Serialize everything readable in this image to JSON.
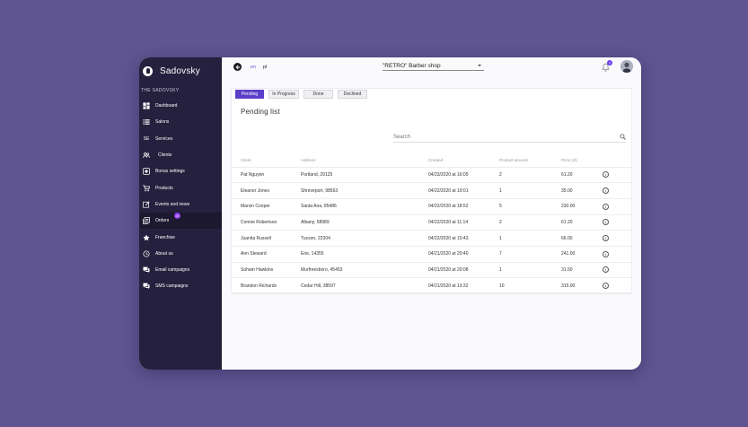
{
  "brand": {
    "name": "Sadovsky"
  },
  "sidebar": {
    "section_label": "THE SADOVSKY",
    "items": [
      {
        "label": "Dashboard",
        "icon": "dashboard-icon"
      },
      {
        "label": "Salons",
        "icon": "list-icon"
      },
      {
        "label": "Services",
        "icon": "services-icon",
        "icon_text": "SE"
      },
      {
        "label": "Clients",
        "icon": "clients-icon"
      },
      {
        "label": "Bonus settings",
        "icon": "bonus-icon"
      },
      {
        "label": "Products",
        "icon": "cart-icon"
      },
      {
        "label": "Events and news",
        "icon": "edit-icon"
      },
      {
        "label": "Orders",
        "icon": "orders-icon",
        "badge": "25"
      },
      {
        "label": "Franchise",
        "icon": "star-icon"
      },
      {
        "label": "About us",
        "icon": "history-icon"
      },
      {
        "label": "Email campaigns",
        "icon": "chat-icon"
      },
      {
        "label": "SMS campaigns",
        "icon": "chat-icon"
      }
    ]
  },
  "topbar": {
    "lang_en": "en",
    "lang_pl": "pl",
    "shop": "\"RETRO\" Barber shop",
    "notifications": "4"
  },
  "tabs": [
    "Pending",
    "In Progress",
    "Done",
    "Declined"
  ],
  "list_title": "Pending list",
  "search": {
    "placeholder": "Search"
  },
  "table": {
    "headers": [
      "Client",
      "Address",
      "Created",
      "Product amount",
      "Price (zł)"
    ],
    "rows": [
      [
        "Pat Nguyen",
        "Portland, 29125",
        "04/23/2020 at 16:05",
        "2",
        "61.20"
      ],
      [
        "Eleanor Jones",
        "Shreveport, 98563",
        "04/22/2020 at 19:01",
        "1",
        "35.00"
      ],
      [
        "Marvin Cooper",
        "Santa Ana, 85486",
        "04/22/2020 at 18:52",
        "5",
        "230.00"
      ],
      [
        "Connie Robertson",
        "Albany, 58989",
        "04/22/2020 at 11:14",
        "2",
        "61.20"
      ],
      [
        "Juanita Russell",
        "Tucson, 22304",
        "04/22/2020 at 10:43",
        "1",
        "66.00"
      ],
      [
        "Ann Steward",
        "Erie, 14355",
        "04/21/2020 at 20:40",
        "7",
        "241.00"
      ],
      [
        "Soham Hawkins",
        "Murfreesboro, 45453",
        "04/21/2020 at 20:08",
        "1",
        "31.50"
      ],
      [
        "Brandon Richards",
        "Cedar Hill, 38597",
        "04/21/2020 at 13:32",
        "10",
        "315.00"
      ]
    ]
  }
}
